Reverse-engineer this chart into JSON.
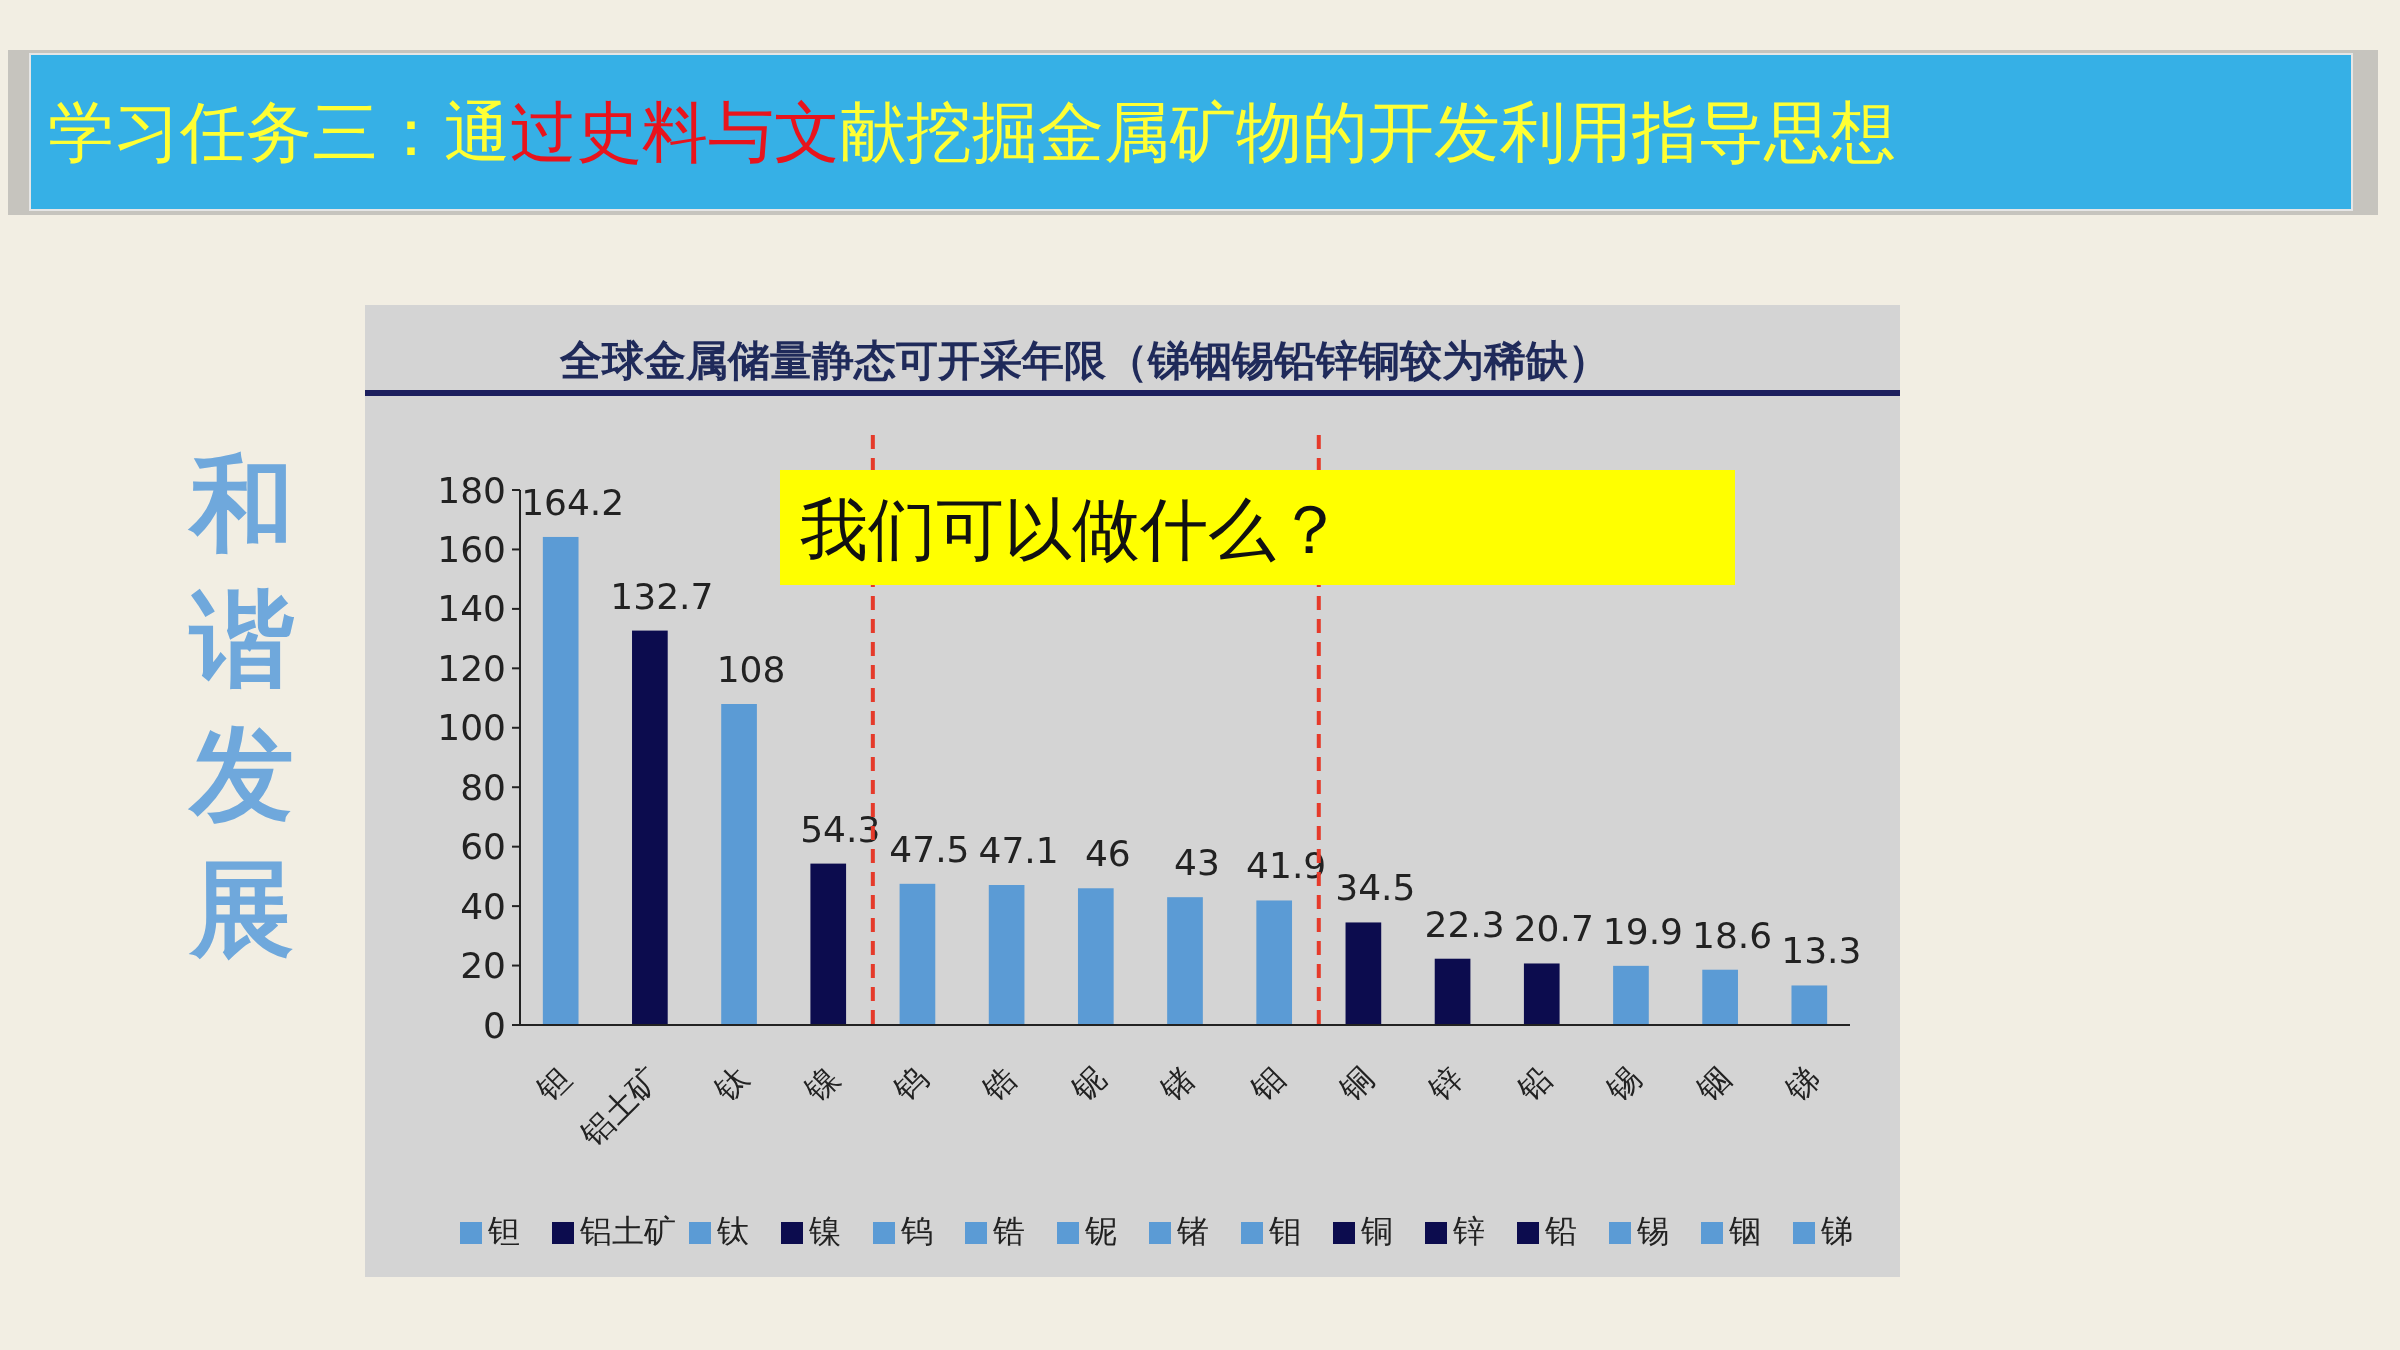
{
  "chart_data": {
    "type": "bar",
    "title": "全球金属储量静态可开采年限（锑铟锡铅锌铜较为稀缺）",
    "categories": [
      "钽",
      "铝土矿",
      "钛",
      "镍",
      "钨",
      "锆",
      "铌",
      "锗",
      "钼",
      "铜",
      "锌",
      "铅",
      "锡",
      "铟",
      "锑"
    ],
    "stacked": true,
    "series": [
      {
        "name": "钽",
        "color": "#5b9bd5",
        "values": [
          164.2,
          null,
          null,
          null,
          null,
          null,
          null,
          null,
          null,
          null,
          null,
          null,
          null,
          null,
          null
        ]
      },
      {
        "name": "铝土矿",
        "color": "#0c0c4e",
        "values": [
          null,
          132.7,
          null,
          null,
          null,
          null,
          null,
          null,
          null,
          null,
          null,
          null,
          null,
          null,
          null
        ]
      },
      {
        "name": "钛",
        "color": "#5b9bd5",
        "values": [
          null,
          null,
          108,
          null,
          null,
          null,
          null,
          null,
          null,
          null,
          null,
          null,
          null,
          null,
          null
        ]
      },
      {
        "name": "镍",
        "color": "#0c0c4e",
        "values": [
          null,
          null,
          null,
          54.3,
          null,
          null,
          null,
          null,
          null,
          null,
          null,
          null,
          null,
          null,
          null
        ]
      },
      {
        "name": "钨",
        "color": "#5b9bd5",
        "values": [
          null,
          null,
          null,
          null,
          47.5,
          null,
          null,
          null,
          null,
          null,
          null,
          null,
          null,
          null,
          null
        ]
      },
      {
        "name": "锆",
        "color": "#5b9bd5",
        "values": [
          null,
          null,
          null,
          null,
          null,
          47.1,
          null,
          null,
          null,
          null,
          null,
          null,
          null,
          null,
          null
        ]
      },
      {
        "name": "铌",
        "color": "#5b9bd5",
        "values": [
          null,
          null,
          null,
          null,
          null,
          null,
          46,
          null,
          null,
          null,
          null,
          null,
          null,
          null,
          null
        ]
      },
      {
        "name": "锗",
        "color": "#5b9bd5",
        "values": [
          null,
          null,
          null,
          null,
          null,
          null,
          null,
          43,
          null,
          null,
          null,
          null,
          null,
          null,
          null
        ]
      },
      {
        "name": "钼",
        "color": "#5b9bd5",
        "values": [
          null,
          null,
          null,
          null,
          null,
          null,
          null,
          null,
          41.9,
          null,
          null,
          null,
          null,
          null,
          null
        ]
      },
      {
        "name": "铜",
        "color": "#0c0c4e",
        "values": [
          null,
          null,
          null,
          null,
          null,
          null,
          null,
          null,
          null,
          34.5,
          null,
          null,
          null,
          null,
          null
        ]
      },
      {
        "name": "锌",
        "color": "#0c0c4e",
        "values": [
          null,
          null,
          null,
          null,
          null,
          null,
          null,
          null,
          null,
          null,
          22.3,
          null,
          null,
          null,
          null
        ]
      },
      {
        "name": "铅",
        "color": "#0c0c4e",
        "values": [
          null,
          null,
          null,
          null,
          null,
          null,
          null,
          null,
          null,
          null,
          null,
          20.7,
          null,
          null,
          null
        ]
      },
      {
        "name": "锡",
        "color": "#5b9bd5",
        "values": [
          null,
          null,
          null,
          null,
          null,
          null,
          null,
          null,
          null,
          null,
          null,
          null,
          19.9,
          null,
          null
        ]
      },
      {
        "name": "铟",
        "color": "#5b9bd5",
        "values": [
          null,
          null,
          null,
          null,
          null,
          null,
          null,
          null,
          null,
          null,
          null,
          null,
          null,
          18.6,
          null
        ]
      },
      {
        "name": "锑",
        "color": "#5b9bd5",
        "values": [
          null,
          null,
          null,
          null,
          null,
          null,
          null,
          null,
          null,
          null,
          null,
          null,
          null,
          null,
          13.3
        ]
      }
    ],
    "data_labels": true,
    "ylim": [
      0,
      180
    ],
    "yticks": [
      0,
      20,
      40,
      60,
      80,
      100,
      120,
      140,
      160,
      180
    ],
    "legend": "bottom",
    "annotations": [
      "学习任务三：通过史料与文献挖掘金属矿物的开发利用指导思想",
      "和谐发展",
      "我们可以做什么？"
    ]
  }
}
